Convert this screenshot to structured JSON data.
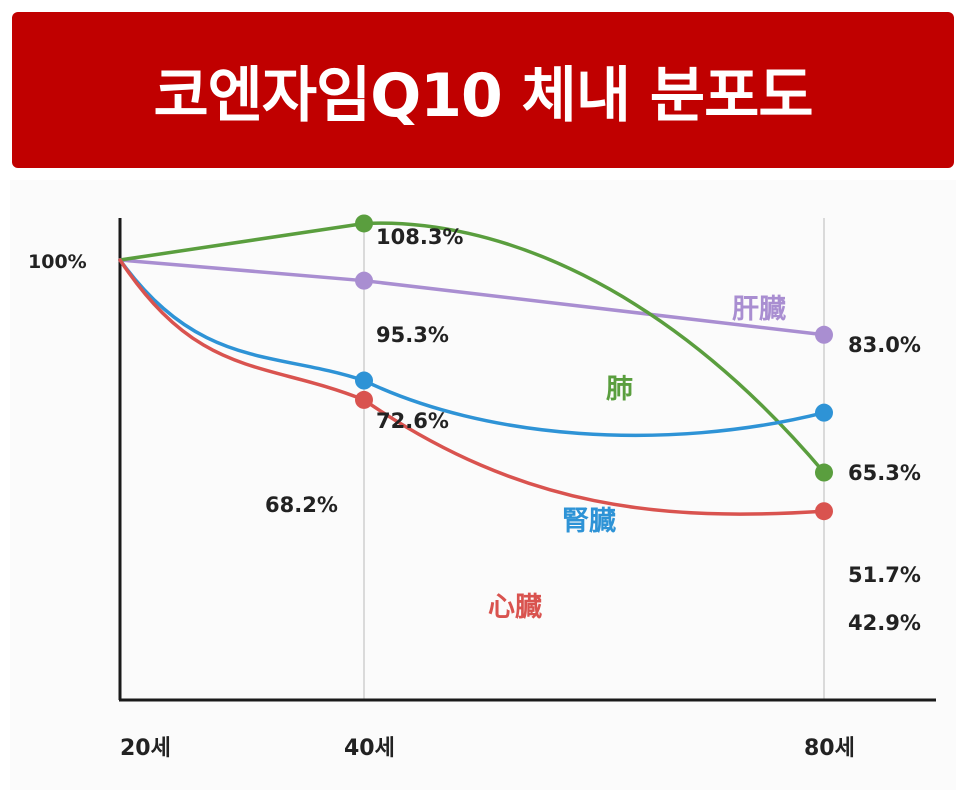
{
  "title": "코엔자임Q10 체내 분포도",
  "colors": {
    "banner": "#c00000",
    "axis": "#1a1a1a",
    "grid": "#cfcfcf"
  },
  "chart_data": {
    "type": "line",
    "title": "코엔자임Q10 체내 분포도",
    "x": [
      "20세",
      "40세",
      "80세"
    ],
    "x_numeric": [
      20,
      40,
      80
    ],
    "y_tick_label": "100%",
    "y_tick_value": 100,
    "ylim": [
      0,
      110
    ],
    "grid": "vertical lines at 40세 and 80세",
    "series": [
      {
        "name": "肝臓",
        "color": "#a98ed1",
        "values": [
          100,
          95.3,
          83.0
        ],
        "labels": [
          "",
          "95.3%",
          "83.0%"
        ]
      },
      {
        "name": "肺",
        "color": "#5a9e3e",
        "values": [
          100,
          108.3,
          51.7
        ],
        "labels": [
          "",
          "108.3%",
          "51.7%"
        ]
      },
      {
        "name": "腎臓",
        "color": "#2e93d6",
        "values": [
          100,
          72.6,
          65.3
        ],
        "labels": [
          "",
          "72.6%",
          "65.3%"
        ]
      },
      {
        "name": "心臓",
        "color": "#d9534f",
        "values": [
          100,
          68.2,
          42.9
        ],
        "labels": [
          "",
          "68.2%",
          "42.9%"
        ]
      }
    ]
  }
}
